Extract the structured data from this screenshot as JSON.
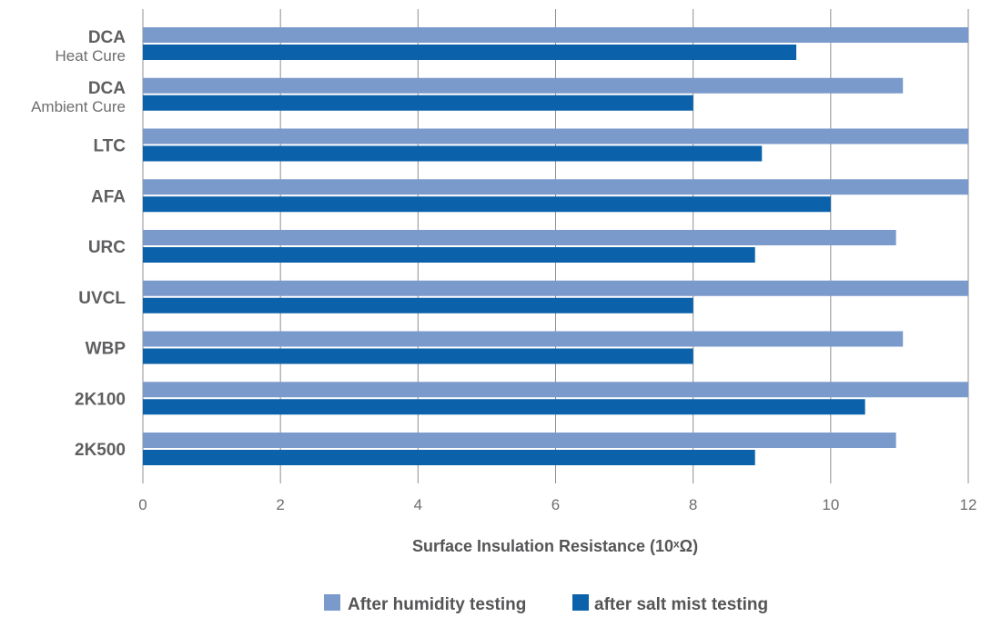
{
  "chart_data": {
    "type": "bar",
    "orientation": "horizontal",
    "categories": [
      {
        "name": "DCA",
        "sub": "Heat Cure"
      },
      {
        "name": "DCA",
        "sub": "Ambient Cure"
      },
      {
        "name": "LTC",
        "sub": ""
      },
      {
        "name": "AFA",
        "sub": ""
      },
      {
        "name": "URC",
        "sub": ""
      },
      {
        "name": "UVCL",
        "sub": ""
      },
      {
        "name": "WBP",
        "sub": ""
      },
      {
        "name": "2K100",
        "sub": ""
      },
      {
        "name": "2K500",
        "sub": ""
      }
    ],
    "series": [
      {
        "name": "After humidity testing",
        "color": "#7a9acc",
        "values": [
          12,
          11.05,
          12,
          12,
          10.95,
          12,
          11.05,
          12,
          10.95
        ]
      },
      {
        "name": "after salt mist testing",
        "color": "#0b62aa",
        "values": [
          9.5,
          8.0,
          9.0,
          10.0,
          8.9,
          8.0,
          8.0,
          10.5,
          8.9
        ]
      }
    ],
    "xlabel": "Surface Insulation Resistance (10ˣΩ)",
    "ylabel": "",
    "title": "",
    "xlim": [
      0,
      12
    ],
    "xticks": [
      "0",
      "2",
      "4",
      "6",
      "8",
      "10",
      "12"
    ],
    "grid": true,
    "legend_position": "bottom"
  }
}
